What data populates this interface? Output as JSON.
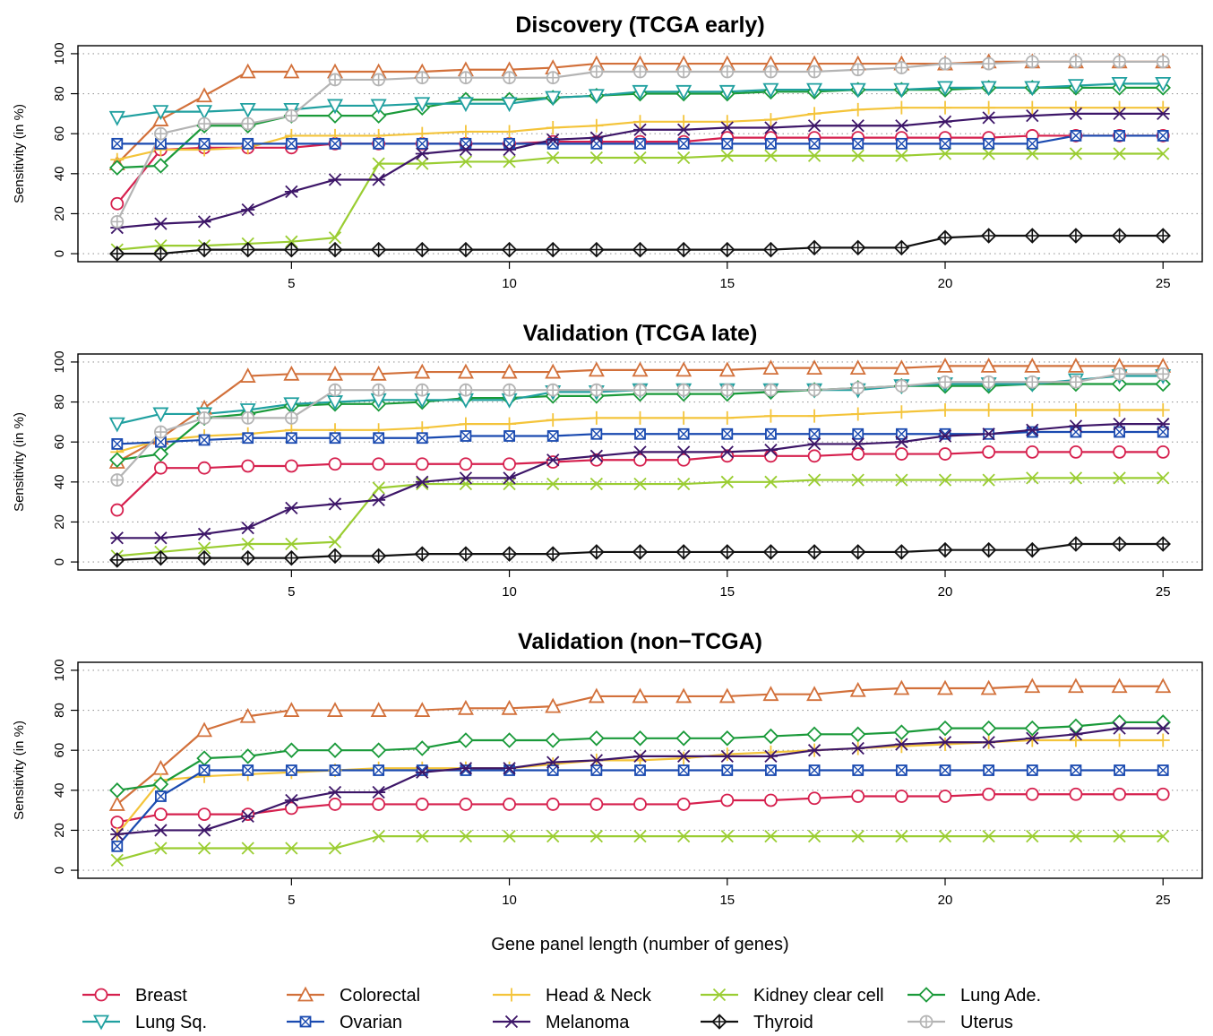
{
  "chart_data": {
    "type": "line",
    "xlabel": "Gene panel length (number of genes)",
    "x": [
      1,
      2,
      3,
      4,
      5,
      6,
      7,
      8,
      9,
      10,
      11,
      12,
      13,
      14,
      15,
      16,
      17,
      18,
      19,
      20,
      21,
      22,
      23,
      24,
      25
    ],
    "x_ticks": [
      "5",
      "10",
      "15",
      "20",
      "25"
    ],
    "y_ticks": [
      "0",
      "20",
      "40",
      "60",
      "80",
      "100"
    ],
    "xlim": [
      0.1,
      25.9
    ],
    "ylim": [
      -4,
      104
    ],
    "grid": "horizontal dotted",
    "legend": {
      "placement": "bottom",
      "order": [
        "Breast",
        "Colorectal",
        "Head & Neck",
        "Kidney clear cell",
        "Lung Ade.",
        "Lung Sq.",
        "Ovarian",
        "Melanoma",
        "Thyroid",
        "Uterus"
      ]
    },
    "styles": {
      "Breast": {
        "color": "#d6204e",
        "marker": "circle"
      },
      "Colorectal": {
        "color": "#d2703a",
        "marker": "triangle-up"
      },
      "Head & Neck": {
        "color": "#f4c43a",
        "marker": "plus"
      },
      "Kidney clear cell": {
        "color": "#9acd32",
        "marker": "cross"
      },
      "Lung Ade.": {
        "color": "#1a9a3a",
        "marker": "diamond"
      },
      "Lung Sq.": {
        "color": "#20a0a0",
        "marker": "triangle-down"
      },
      "Ovarian": {
        "color": "#1a4ab0",
        "marker": "square-cross"
      },
      "Melanoma": {
        "color": "#3d1668",
        "marker": "asterisk"
      },
      "Thyroid": {
        "color": "#111111",
        "marker": "diamond-plus"
      },
      "Uterus": {
        "color": "#b4b4b4",
        "marker": "circle-plus"
      }
    },
    "panels": [
      {
        "title": "Discovery (TCGA early)",
        "ylabel": "Sensitivity (in %)",
        "series": [
          {
            "name": "Breast",
            "values": [
              25,
              52,
              53,
              53,
              53,
              55,
              55,
              55,
              55,
              55,
              56,
              56,
              56,
              56,
              58,
              58,
              58,
              58,
              58,
              58,
              58,
              59,
              59,
              59,
              59
            ]
          },
          {
            "name": "Colorectal",
            "values": [
              45,
              67,
              79,
              91,
              91,
              91,
              91,
              91,
              92,
              92,
              93,
              95,
              95,
              95,
              95,
              95,
              95,
              95,
              95,
              95,
              96,
              96,
              96,
              96,
              96
            ]
          },
          {
            "name": "Head & Neck",
            "values": [
              47,
              52,
              52,
              53,
              59,
              59,
              59,
              60,
              61,
              61,
              63,
              64,
              66,
              66,
              66,
              67,
              70,
              72,
              73,
              73,
              73,
              73,
              73,
              73,
              73
            ]
          },
          {
            "name": "Kidney clear cell",
            "values": [
              2,
              4,
              4,
              5,
              6,
              8,
              45,
              45,
              46,
              46,
              48,
              48,
              48,
              48,
              49,
              49,
              49,
              49,
              49,
              50,
              50,
              50,
              50,
              50,
              50
            ]
          },
          {
            "name": "Lung Ade.",
            "values": [
              43,
              44,
              64,
              64,
              69,
              69,
              69,
              73,
              77,
              77,
              78,
              79,
              80,
              80,
              80,
              81,
              81,
              82,
              82,
              82,
              83,
              83,
              83,
              83,
              83
            ]
          },
          {
            "name": "Lung Sq.",
            "values": [
              68,
              71,
              71,
              72,
              72,
              74,
              74,
              75,
              75,
              75,
              78,
              79,
              81,
              81,
              81,
              82,
              82,
              82,
              82,
              83,
              83,
              83,
              84,
              85,
              85
            ]
          },
          {
            "name": "Ovarian",
            "values": [
              55,
              55,
              55,
              55,
              55,
              55,
              55,
              55,
              55,
              55,
              55,
              55,
              55,
              55,
              55,
              55,
              55,
              55,
              55,
              55,
              55,
              55,
              59,
              59,
              59
            ]
          },
          {
            "name": "Melanoma",
            "values": [
              13,
              15,
              16,
              22,
              31,
              37,
              37,
              50,
              52,
              52,
              57,
              58,
              62,
              62,
              63,
              63,
              64,
              64,
              64,
              66,
              68,
              69,
              70,
              70,
              70
            ]
          },
          {
            "name": "Thyroid",
            "values": [
              0,
              0,
              2,
              2,
              2,
              2,
              2,
              2,
              2,
              2,
              2,
              2,
              2,
              2,
              2,
              2,
              3,
              3,
              3,
              8,
              9,
              9,
              9,
              9,
              9
            ]
          },
          {
            "name": "Uterus",
            "values": [
              16,
              60,
              65,
              65,
              69,
              87,
              87,
              88,
              88,
              88,
              88,
              91,
              91,
              91,
              91,
              91,
              91,
              92,
              93,
              95,
              95,
              96,
              96,
              96,
              96
            ]
          }
        ]
      },
      {
        "title": "Validation (TCGA late)",
        "ylabel": "Sensitivity (in %)",
        "series": [
          {
            "name": "Breast",
            "values": [
              26,
              47,
              47,
              48,
              48,
              49,
              49,
              49,
              49,
              49,
              50,
              51,
              51,
              51,
              53,
              53,
              53,
              54,
              54,
              54,
              55,
              55,
              55,
              55,
              55
            ]
          },
          {
            "name": "Colorectal",
            "values": [
              50,
              62,
              77,
              93,
              94,
              94,
              94,
              95,
              95,
              95,
              95,
              96,
              96,
              96,
              96,
              97,
              97,
              97,
              97,
              98,
              98,
              98,
              98,
              98,
              98
            ]
          },
          {
            "name": "Head & Neck",
            "values": [
              55,
              61,
              63,
              64,
              66,
              66,
              66,
              67,
              69,
              69,
              71,
              72,
              72,
              72,
              72,
              73,
              73,
              74,
              75,
              76,
              76,
              76,
              76,
              76,
              76
            ]
          },
          {
            "name": "Kidney clear cell",
            "values": [
              3,
              5,
              7,
              9,
              9,
              10,
              37,
              39,
              39,
              39,
              39,
              39,
              39,
              39,
              40,
              40,
              41,
              41,
              41,
              41,
              41,
              42,
              42,
              42,
              42
            ]
          },
          {
            "name": "Lung Ade.",
            "values": [
              51,
              54,
              72,
              74,
              78,
              79,
              79,
              80,
              82,
              82,
              83,
              83,
              84,
              84,
              84,
              85,
              86,
              87,
              88,
              88,
              88,
              89,
              89,
              89,
              89
            ]
          },
          {
            "name": "Lung Sq.",
            "values": [
              69,
              74,
              74,
              76,
              79,
              80,
              81,
              81,
              81,
              81,
              85,
              85,
              86,
              86,
              86,
              86,
              86,
              86,
              88,
              89,
              89,
              89,
              91,
              93,
              93
            ]
          },
          {
            "name": "Ovarian",
            "values": [
              59,
              60,
              61,
              62,
              62,
              62,
              62,
              62,
              63,
              63,
              63,
              64,
              64,
              64,
              64,
              64,
              64,
              64,
              64,
              64,
              64,
              65,
              65,
              65,
              65
            ]
          },
          {
            "name": "Melanoma",
            "values": [
              12,
              12,
              14,
              17,
              27,
              29,
              31,
              40,
              42,
              42,
              51,
              53,
              55,
              55,
              55,
              56,
              59,
              59,
              60,
              63,
              64,
              66,
              68,
              69,
              69
            ]
          },
          {
            "name": "Thyroid",
            "values": [
              1,
              2,
              2,
              2,
              2,
              3,
              3,
              4,
              4,
              4,
              4,
              5,
              5,
              5,
              5,
              5,
              5,
              5,
              5,
              6,
              6,
              6,
              9,
              9,
              9
            ]
          },
          {
            "name": "Uterus",
            "values": [
              41,
              65,
              72,
              72,
              72,
              86,
              86,
              86,
              86,
              86,
              86,
              86,
              86,
              86,
              86,
              86,
              86,
              87,
              88,
              90,
              90,
              90,
              90,
              94,
              94
            ]
          }
        ]
      },
      {
        "title": "Validation (non−TCGA)",
        "ylabel": "Sensitivity (in %)",
        "series": [
          {
            "name": "Breast",
            "values": [
              24,
              28,
              28,
              28,
              31,
              33,
              33,
              33,
              33,
              33,
              33,
              33,
              33,
              33,
              35,
              35,
              36,
              37,
              37,
              37,
              38,
              38,
              38,
              38,
              38
            ]
          },
          {
            "name": "Colorectal",
            "values": [
              33,
              51,
              70,
              77,
              80,
              80,
              80,
              80,
              81,
              81,
              82,
              87,
              87,
              87,
              87,
              88,
              88,
              90,
              91,
              91,
              91,
              92,
              92,
              92,
              92
            ]
          },
          {
            "name": "Head & Neck",
            "values": [
              18,
              45,
              47,
              48,
              49,
              50,
              51,
              51,
              51,
              51,
              53,
              55,
              55,
              56,
              58,
              59,
              60,
              61,
              62,
              63,
              64,
              65,
              65,
              65,
              65
            ]
          },
          {
            "name": "Kidney clear cell",
            "values": [
              5,
              11,
              11,
              11,
              11,
              11,
              17,
              17,
              17,
              17,
              17,
              17,
              17,
              17,
              17,
              17,
              17,
              17,
              17,
              17,
              17,
              17,
              17,
              17,
              17
            ]
          },
          {
            "name": "Lung Ade.",
            "values": [
              40,
              43,
              56,
              57,
              60,
              60,
              60,
              61,
              65,
              65,
              65,
              66,
              66,
              66,
              66,
              67,
              68,
              68,
              69,
              71,
              71,
              71,
              72,
              74,
              74
            ]
          },
          {
            "name": "Ovarian",
            "values": [
              12,
              37,
              50,
              50,
              50,
              50,
              50,
              50,
              50,
              50,
              50,
              50,
              50,
              50,
              50,
              50,
              50,
              50,
              50,
              50,
              50,
              50,
              50,
              50,
              50
            ]
          },
          {
            "name": "Melanoma",
            "values": [
              18,
              20,
              20,
              27,
              35,
              39,
              39,
              49,
              51,
              51,
              54,
              55,
              57,
              57,
              57,
              57,
              60,
              61,
              63,
              64,
              64,
              66,
              68,
              71,
              71
            ]
          }
        ]
      }
    ]
  }
}
